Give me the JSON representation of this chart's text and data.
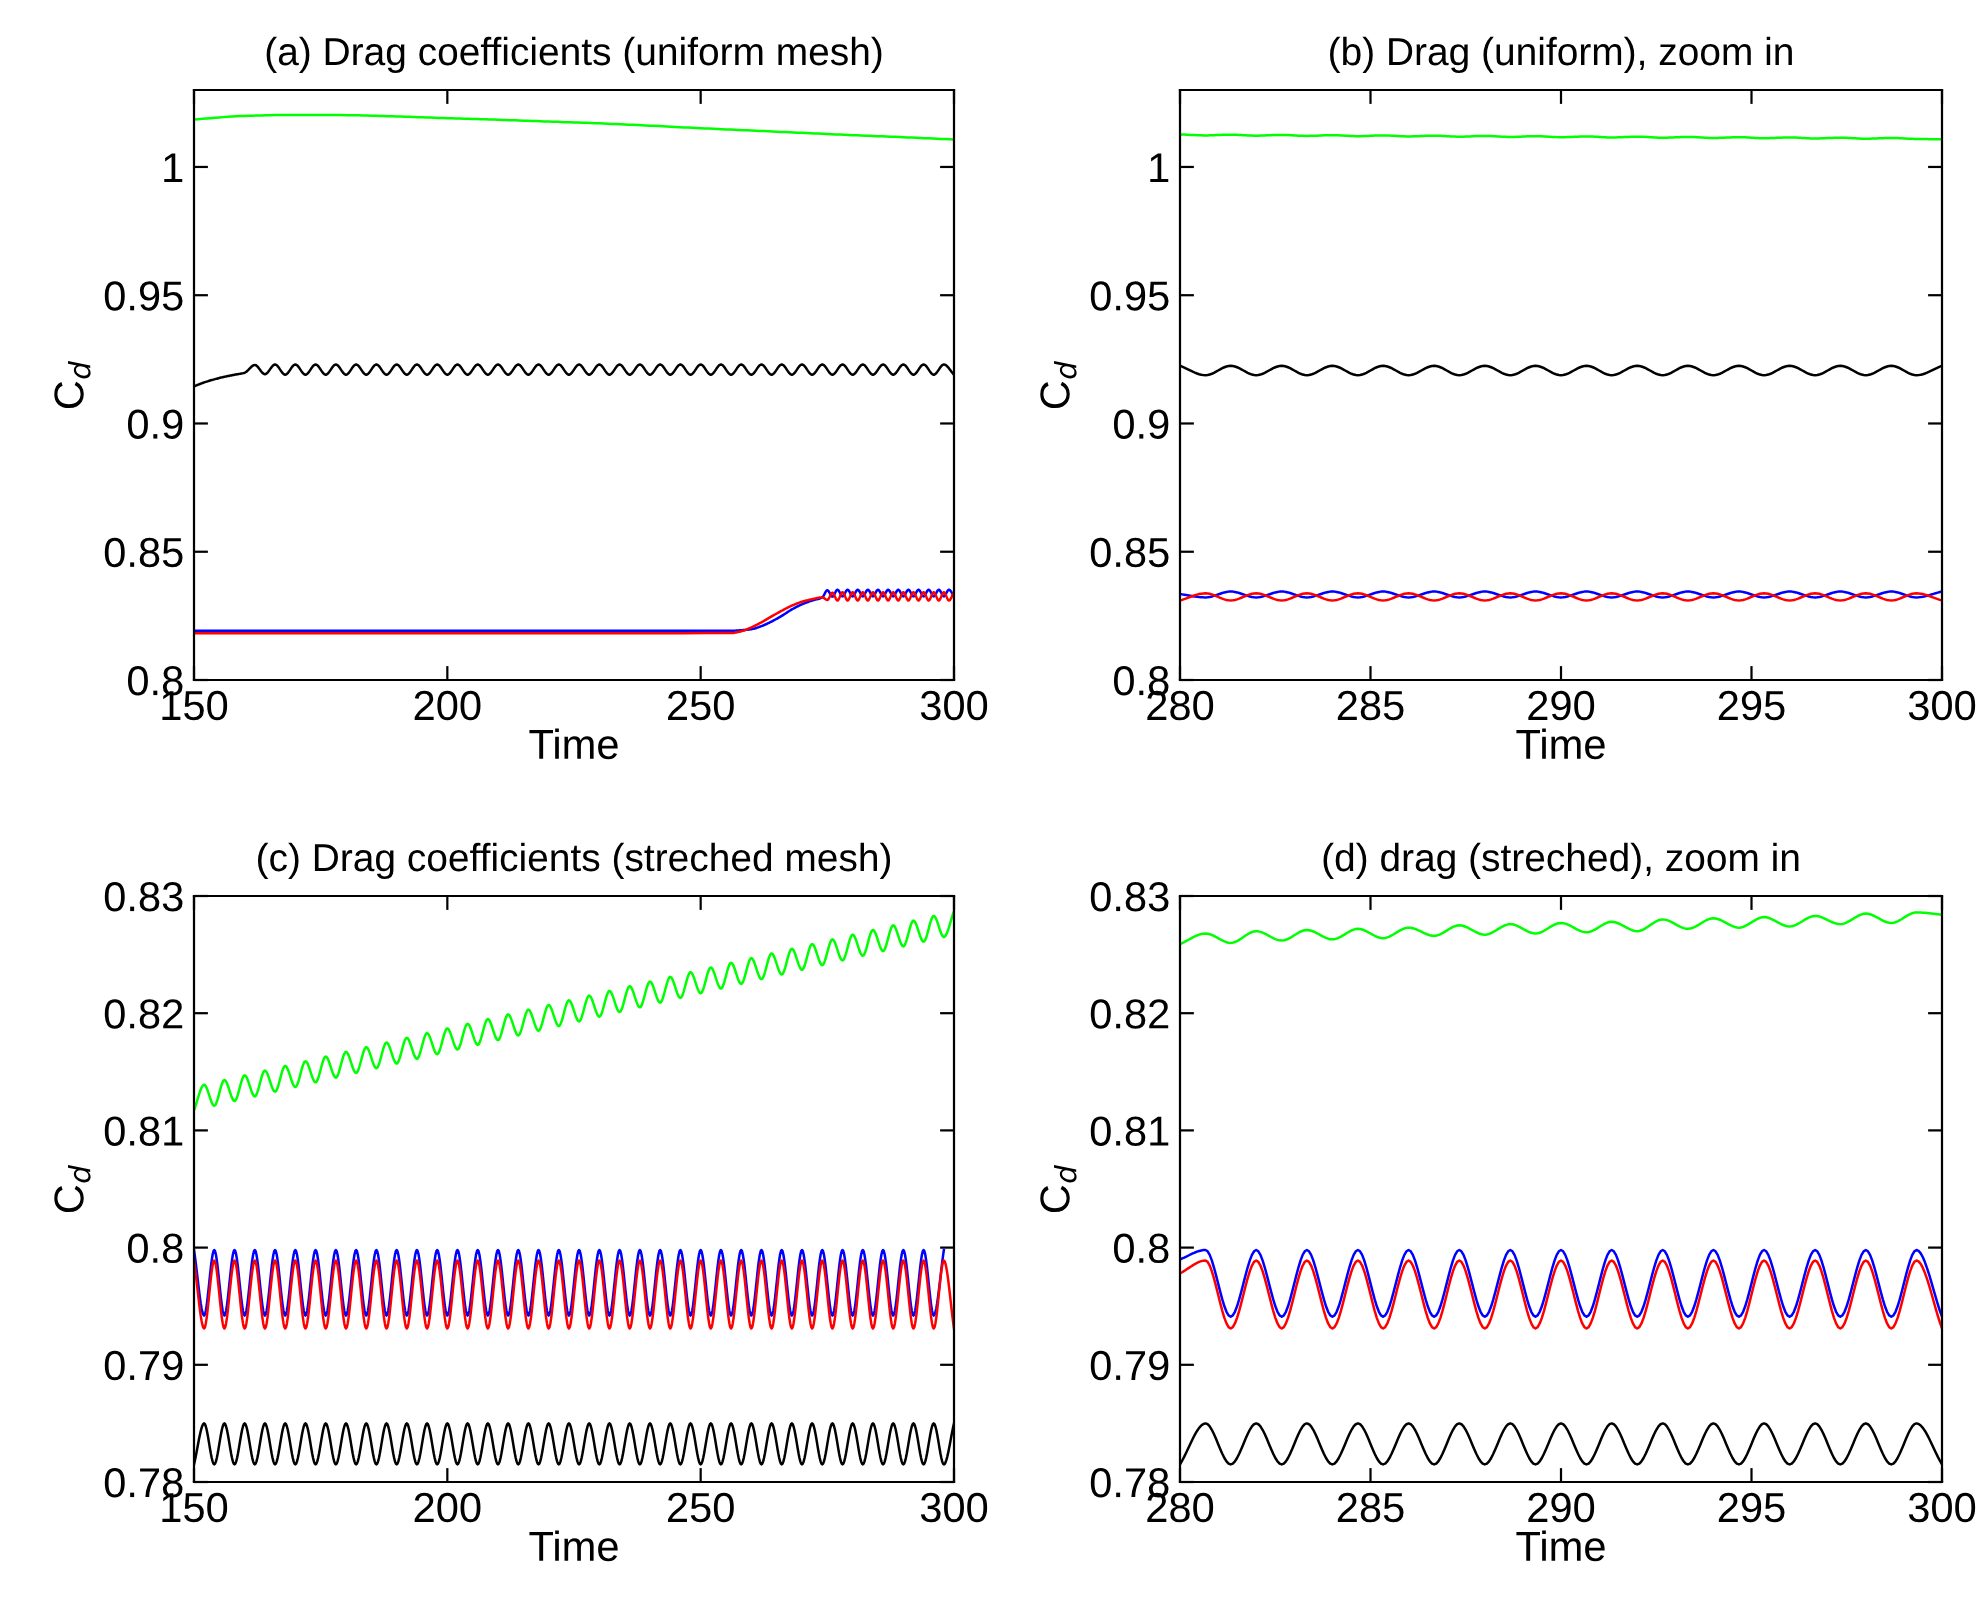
{
  "chart_data": [
    {
      "type": "line",
      "title": "(a) Drag coefficients (uniform mesh)",
      "xlabel": "Time",
      "ylabel": "C$_{d}$",
      "xlim": [
        150,
        300
      ],
      "ylim": [
        0.8,
        1.03
      ],
      "xticks": [
        150,
        200,
        250,
        300
      ],
      "yticks": [
        0.8,
        0.85,
        0.9,
        0.95,
        1
      ],
      "grid": false,
      "legend": false,
      "series": [
        {
          "color": "#00ff00",
          "x": [
            150,
            160,
            170,
            180,
            190,
            200,
            210,
            220,
            230,
            240,
            250,
            260,
            270,
            280,
            290,
            300
          ],
          "values": [
            1.0185,
            1.0199,
            1.0203,
            1.0202,
            1.0197,
            1.019,
            1.0184,
            1.0177,
            1.017,
            1.0161,
            1.0151,
            1.0142,
            1.0133,
            1.0124,
            1.0116,
            1.0107
          ]
        },
        {
          "color": "#000000",
          "x": [
            150,
            152,
            154,
            156,
            158,
            160,
            162,
            164,
            166,
            168,
            170,
            172,
            174,
            176,
            178,
            180,
            182,
            184,
            186,
            188,
            190,
            192,
            194,
            196,
            198,
            200,
            202,
            204,
            206,
            208,
            210,
            212,
            214,
            216,
            218,
            220,
            222,
            224,
            226,
            228,
            230,
            232,
            234,
            236,
            238,
            240,
            242,
            244,
            246,
            248,
            250,
            252,
            254,
            256,
            258,
            260,
            262,
            264,
            266,
            268,
            270,
            272,
            274,
            276,
            278,
            280,
            282,
            284,
            286,
            288,
            290,
            292,
            294,
            296,
            298,
            300
          ],
          "values": [
            0.9145,
            0.916,
            0.9172,
            0.9182,
            0.919,
            0.9198,
            0.9228,
            0.9192,
            0.923,
            0.919,
            0.923,
            0.919,
            0.923,
            0.919,
            0.923,
            0.919,
            0.923,
            0.919,
            0.923,
            0.919,
            0.923,
            0.919,
            0.923,
            0.919,
            0.923,
            0.919,
            0.923,
            0.919,
            0.923,
            0.919,
            0.923,
            0.919,
            0.923,
            0.919,
            0.923,
            0.919,
            0.923,
            0.919,
            0.923,
            0.919,
            0.923,
            0.919,
            0.923,
            0.919,
            0.923,
            0.919,
            0.923,
            0.919,
            0.923,
            0.919,
            0.923,
            0.919,
            0.923,
            0.919,
            0.923,
            0.919,
            0.923,
            0.919,
            0.923,
            0.919,
            0.923,
            0.919,
            0.923,
            0.919,
            0.923,
            0.919,
            0.923,
            0.919,
            0.923,
            0.919,
            0.923,
            0.919,
            0.923,
            0.919,
            0.923,
            0.919
          ]
        },
        {
          "color": "#0000ff",
          "x": [
            150,
            200,
            256,
            258,
            260,
            262,
            264,
            266,
            268,
            270,
            272,
            274,
            275,
            276,
            277,
            278,
            279,
            280,
            281,
            282,
            283,
            284,
            285,
            286,
            287,
            288,
            289,
            290,
            291,
            292,
            293,
            294,
            295,
            296,
            297,
            298,
            299,
            300
          ],
          "values": [
            0.8192,
            0.8192,
            0.8192,
            0.8194,
            0.8198,
            0.821,
            0.8228,
            0.825,
            0.8275,
            0.8295,
            0.831,
            0.8322,
            0.835,
            0.8325,
            0.8352,
            0.8326,
            0.8352,
            0.8326,
            0.8352,
            0.8326,
            0.8352,
            0.8326,
            0.8352,
            0.8326,
            0.8352,
            0.8326,
            0.8352,
            0.8326,
            0.8352,
            0.8326,
            0.8352,
            0.8326,
            0.8352,
            0.8326,
            0.8352,
            0.8326,
            0.8352,
            0.8326
          ]
        },
        {
          "color": "#ff0000",
          "x": [
            150,
            200,
            256,
            258,
            260,
            262,
            264,
            266,
            268,
            270,
            272,
            274,
            275,
            276,
            277,
            278,
            279,
            280,
            281,
            282,
            283,
            284,
            285,
            286,
            287,
            288,
            289,
            290,
            291,
            292,
            293,
            294,
            295,
            296,
            297,
            298,
            299,
            300
          ],
          "values": [
            0.8182,
            0.8182,
            0.8183,
            0.819,
            0.8205,
            0.8225,
            0.8248,
            0.827,
            0.829,
            0.8305,
            0.8315,
            0.8322,
            0.8312,
            0.834,
            0.831,
            0.8342,
            0.831,
            0.8342,
            0.831,
            0.8342,
            0.831,
            0.8342,
            0.831,
            0.8342,
            0.831,
            0.8342,
            0.831,
            0.8342,
            0.831,
            0.8342,
            0.831,
            0.8342,
            0.831,
            0.8342,
            0.831,
            0.8342,
            0.831,
            0.8342
          ]
        }
      ]
    },
    {
      "type": "line",
      "title": "(b) Drag (uniform), zoom in",
      "xlabel": "Time",
      "ylabel": "C$_{d}$",
      "xlim": [
        280,
        300
      ],
      "ylim": [
        0.8,
        1.03
      ],
      "xticks": [
        280,
        285,
        290,
        295,
        300
      ],
      "yticks": [
        0.8,
        0.85,
        0.9,
        0.95,
        1
      ],
      "grid": false,
      "legend": false,
      "x": [
        280,
        280.67,
        281.33,
        282,
        282.67,
        283.33,
        284,
        284.67,
        285.33,
        286,
        286.67,
        287.33,
        288,
        288.67,
        289.33,
        290,
        290.67,
        291.33,
        292,
        292.67,
        293.33,
        294,
        294.67,
        295.33,
        296,
        296.67,
        297.33,
        298,
        298.67,
        299.33,
        300
      ],
      "series": [
        {
          "color": "#00ff00",
          "values": [
            1.0127,
            1.0123,
            1.0126,
            1.0122,
            1.0125,
            1.0121,
            1.0124,
            1.012,
            1.0123,
            1.0119,
            1.0122,
            1.0118,
            1.0121,
            1.0117,
            1.012,
            1.0116,
            1.0119,
            1.0115,
            1.0118,
            1.0114,
            1.0117,
            1.0113,
            1.0116,
            1.0112,
            1.0115,
            1.0111,
            1.0114,
            1.011,
            1.0113,
            1.0109,
            1.0108
          ]
        },
        {
          "color": "#000000",
          "values": [
            0.9225,
            0.9188,
            0.9225,
            0.9188,
            0.9225,
            0.9188,
            0.9225,
            0.9188,
            0.9225,
            0.9188,
            0.9225,
            0.9188,
            0.9225,
            0.9188,
            0.9225,
            0.9188,
            0.9225,
            0.9188,
            0.9225,
            0.9188,
            0.9225,
            0.9188,
            0.9225,
            0.9188,
            0.9225,
            0.9188,
            0.9225,
            0.9188,
            0.9225,
            0.9188,
            0.9225
          ]
        },
        {
          "color": "#0000ff",
          "values": [
            0.8335,
            0.8322,
            0.8345,
            0.8322,
            0.8345,
            0.8322,
            0.8345,
            0.8322,
            0.8345,
            0.8322,
            0.8345,
            0.8322,
            0.8345,
            0.8322,
            0.8345,
            0.8322,
            0.8345,
            0.8322,
            0.8345,
            0.8322,
            0.8345,
            0.8322,
            0.8345,
            0.8322,
            0.8345,
            0.8322,
            0.8345,
            0.8322,
            0.8345,
            0.8322,
            0.8345
          ]
        },
        {
          "color": "#ff0000",
          "values": [
            0.831,
            0.8338,
            0.831,
            0.8338,
            0.831,
            0.8338,
            0.831,
            0.8338,
            0.831,
            0.8338,
            0.831,
            0.8338,
            0.831,
            0.8338,
            0.831,
            0.8338,
            0.831,
            0.8338,
            0.831,
            0.8338,
            0.831,
            0.8338,
            0.831,
            0.8338,
            0.831,
            0.8338,
            0.831,
            0.8338,
            0.831,
            0.8338,
            0.831
          ]
        }
      ]
    },
    {
      "type": "line",
      "title": "(c) Drag coefficients (streched mesh)",
      "xlabel": "Time",
      "ylabel": "C$_{d}$",
      "xlim": [
        150,
        300
      ],
      "ylim": [
        0.78,
        0.83
      ],
      "xticks": [
        150,
        200,
        250,
        300
      ],
      "yticks": [
        0.78,
        0.79,
        0.8,
        0.81,
        0.82,
        0.83
      ],
      "grid": false,
      "legend": false,
      "x": [
        150,
        152,
        154,
        156,
        158,
        160,
        162,
        164,
        166,
        168,
        170,
        172,
        174,
        176,
        178,
        180,
        182,
        184,
        186,
        188,
        190,
        192,
        194,
        196,
        198,
        200,
        202,
        204,
        206,
        208,
        210,
        212,
        214,
        216,
        218,
        220,
        222,
        224,
        226,
        228,
        230,
        232,
        234,
        236,
        238,
        240,
        242,
        244,
        246,
        248,
        250,
        252,
        254,
        256,
        258,
        260,
        262,
        264,
        266,
        268,
        270,
        272,
        274,
        276,
        278,
        280,
        282,
        284,
        286,
        288,
        290,
        292,
        294,
        296,
        298,
        300
      ],
      "series": [
        {
          "color": "#00ff00",
          "values": [
            0.8117,
            0.8139,
            0.8121,
            0.8143,
            0.8125,
            0.8147,
            0.8129,
            0.8151,
            0.8133,
            0.8155,
            0.8137,
            0.8159,
            0.8141,
            0.8163,
            0.8145,
            0.8167,
            0.8149,
            0.8171,
            0.8153,
            0.8175,
            0.8157,
            0.8179,
            0.8161,
            0.8183,
            0.8165,
            0.8187,
            0.8169,
            0.8191,
            0.8173,
            0.8195,
            0.8177,
            0.8199,
            0.8181,
            0.8203,
            0.8185,
            0.8207,
            0.8189,
            0.8211,
            0.8193,
            0.8215,
            0.8197,
            0.8219,
            0.8201,
            0.8223,
            0.8205,
            0.8227,
            0.8209,
            0.8231,
            0.8213,
            0.8235,
            0.8217,
            0.8239,
            0.8221,
            0.8243,
            0.8225,
            0.8247,
            0.8229,
            0.8251,
            0.8233,
            0.8255,
            0.8237,
            0.8259,
            0.8241,
            0.8263,
            0.8245,
            0.8267,
            0.8249,
            0.8271,
            0.8253,
            0.8275,
            0.8257,
            0.8279,
            0.8261,
            0.8283,
            0.8265,
            0.8287
          ]
        },
        {
          "color": "#000000",
          "values": [
            0.7815,
            0.785,
            0.7815,
            0.785,
            0.7815,
            0.785,
            0.7815,
            0.785,
            0.7815,
            0.785,
            0.7815,
            0.785,
            0.7815,
            0.785,
            0.7815,
            0.785,
            0.7815,
            0.785,
            0.7815,
            0.785,
            0.7815,
            0.785,
            0.7815,
            0.785,
            0.7815,
            0.785,
            0.7815,
            0.785,
            0.7815,
            0.785,
            0.7815,
            0.785,
            0.7815,
            0.785,
            0.7815,
            0.785,
            0.7815,
            0.785,
            0.7815,
            0.785,
            0.7815,
            0.785,
            0.7815,
            0.785,
            0.7815,
            0.785,
            0.7815,
            0.785,
            0.7815,
            0.785,
            0.7815,
            0.785,
            0.7815,
            0.785,
            0.7815,
            0.785,
            0.7815,
            0.785,
            0.7815,
            0.785,
            0.7815,
            0.785,
            0.7815,
            0.785,
            0.7815,
            0.785,
            0.7815,
            0.785,
            0.7815,
            0.785,
            0.7815,
            0.785,
            0.7815,
            0.785,
            0.7815,
            0.785
          ]
        },
        {
          "color": "#0000ff",
          "values": [
            0.7998,
            0.7942,
            0.7998,
            0.7942,
            0.7998,
            0.7942,
            0.7998,
            0.7942,
            0.7998,
            0.7942,
            0.7998,
            0.7942,
            0.7998,
            0.7942,
            0.7998,
            0.7942,
            0.7998,
            0.7942,
            0.7998,
            0.7942,
            0.7998,
            0.7942,
            0.7998,
            0.7942,
            0.7998,
            0.7942,
            0.7998,
            0.7942,
            0.7998,
            0.7942,
            0.7998,
            0.7942,
            0.7998,
            0.7942,
            0.7998,
            0.7942,
            0.7998,
            0.7942,
            0.7998,
            0.7942,
            0.7998,
            0.7942,
            0.7998,
            0.7942,
            0.7998,
            0.7942,
            0.7998,
            0.7942,
            0.7998,
            0.7942,
            0.7998,
            0.7942,
            0.7998,
            0.7942,
            0.7998,
            0.7942,
            0.7998,
            0.7942,
            0.7998,
            0.7942,
            0.7998,
            0.7942,
            0.7998,
            0.7942,
            0.7998,
            0.7942,
            0.7998,
            0.7942,
            0.7998,
            0.7942,
            0.7998,
            0.7942,
            0.7998,
            0.7942,
            0.7998,
            null
          ]
        },
        {
          "color": "#ff0000",
          "values": [
            0.7989,
            0.7931,
            0.7989,
            0.7931,
            0.7989,
            0.7931,
            0.7989,
            0.7931,
            0.7989,
            0.7931,
            0.7989,
            0.7931,
            0.7989,
            0.7931,
            0.7989,
            0.7931,
            0.7989,
            0.7931,
            0.7989,
            0.7931,
            0.7989,
            0.7931,
            0.7989,
            0.7931,
            0.7989,
            0.7931,
            0.7989,
            0.7931,
            0.7989,
            0.7931,
            0.7989,
            0.7931,
            0.7989,
            0.7931,
            0.7989,
            0.7931,
            0.7989,
            0.7931,
            0.7989,
            0.7931,
            0.7989,
            0.7931,
            0.7989,
            0.7931,
            0.7989,
            0.7931,
            0.7989,
            0.7931,
            0.7989,
            0.7931,
            0.7989,
            0.7931,
            0.7989,
            0.7931,
            0.7989,
            0.7931,
            0.7989,
            0.7931,
            0.7989,
            0.7931,
            0.7989,
            0.7931,
            0.7989,
            0.7931,
            0.7989,
            0.7931,
            0.7989,
            0.7931,
            0.7989,
            0.7931,
            0.7989,
            0.7931,
            0.7989,
            0.7931,
            0.7989,
            0.7931
          ]
        }
      ]
    },
    {
      "type": "line",
      "title": "(d) drag (streched), zoom in",
      "xlabel": "Time",
      "ylabel": "C$_{d}$",
      "xlim": [
        280,
        300
      ],
      "ylim": [
        0.78,
        0.83
      ],
      "xticks": [
        280,
        285,
        290,
        295,
        300
      ],
      "yticks": [
        0.78,
        0.79,
        0.8,
        0.81,
        0.82,
        0.83
      ],
      "grid": false,
      "legend": false,
      "x": [
        280,
        280.67,
        281.33,
        282,
        282.67,
        283.33,
        284,
        284.67,
        285.33,
        286,
        286.67,
        287.33,
        288,
        288.67,
        289.33,
        290,
        290.67,
        291.33,
        292,
        292.67,
        293.33,
        294,
        294.67,
        295.33,
        296,
        296.67,
        297.33,
        298,
        298.67,
        299.33,
        300
      ],
      "series": [
        {
          "color": "#00ff00",
          "values": [
            0.8259,
            0.8268,
            0.826,
            0.827,
            0.8262,
            0.8271,
            0.8263,
            0.8272,
            0.8264,
            0.8273,
            0.8266,
            0.8275,
            0.8267,
            0.8276,
            0.8268,
            0.8277,
            0.8269,
            0.8278,
            0.827,
            0.828,
            0.8272,
            0.8281,
            0.8273,
            0.8282,
            0.8274,
            0.8283,
            0.8276,
            0.8285,
            0.8277,
            0.8286,
            0.8284
          ]
        },
        {
          "color": "#000000",
          "values": [
            0.7815,
            0.785,
            0.7815,
            0.785,
            0.7815,
            0.785,
            0.7815,
            0.785,
            0.7815,
            0.785,
            0.7815,
            0.785,
            0.7815,
            0.785,
            0.7815,
            0.785,
            0.7815,
            0.785,
            0.7815,
            0.785,
            0.7815,
            0.785,
            0.7815,
            0.785,
            0.7815,
            0.785,
            0.7815,
            0.785,
            0.7815,
            0.785,
            0.7815
          ]
        },
        {
          "color": "#0000ff",
          "values": [
            0.799,
            0.7998,
            0.7941,
            0.7998,
            0.7941,
            0.7998,
            0.7941,
            0.7998,
            0.7941,
            0.7998,
            0.7941,
            0.7998,
            0.7941,
            0.7998,
            0.7941,
            0.7998,
            0.7941,
            0.7998,
            0.7941,
            0.7998,
            0.7941,
            0.7998,
            0.7941,
            0.7998,
            0.7941,
            0.7998,
            0.7941,
            0.7998,
            0.7941,
            0.7998,
            0.7941
          ]
        },
        {
          "color": "#ff0000",
          "values": [
            0.7978,
            0.7989,
            0.7931,
            0.7989,
            0.7931,
            0.7989,
            0.7931,
            0.7989,
            0.7931,
            0.7989,
            0.7931,
            0.7989,
            0.7931,
            0.7989,
            0.7931,
            0.7989,
            0.7931,
            0.7989,
            0.7931,
            0.7989,
            0.7931,
            0.7989,
            0.7931,
            0.7989,
            0.7931,
            0.7989,
            0.7931,
            0.7989,
            0.7931,
            0.7989,
            0.7931
          ]
        }
      ]
    }
  ]
}
